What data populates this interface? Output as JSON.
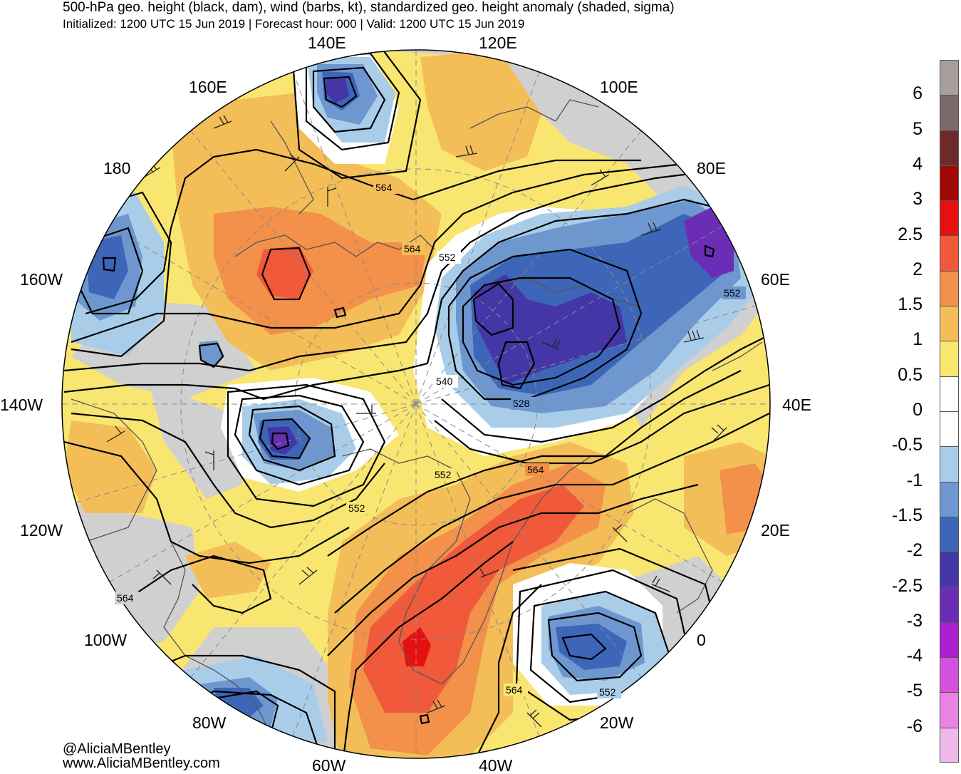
{
  "title": "500-hPa geo. height (black, dam), wind (barbs, kt), standardized geo. height anomaly (shaded, sigma)",
  "subtitle": "Initialized: 1200 UTC 15 Jun 2019 | Forecast hour: 000 | Valid: 1200 UTC 15 Jun 2019",
  "credits": [
    "@AliciaMBentley",
    "www.AliciaMBentley.com"
  ],
  "longitude_labels": [
    "140E",
    "120E",
    "160E",
    "100E",
    "180",
    "80E",
    "160W",
    "60E",
    "140W",
    "40E",
    "120W",
    "20E",
    "100W",
    "0",
    "80W",
    "20W",
    "60W",
    "40W"
  ],
  "contour_labels": [
    "564",
    "564",
    "552",
    "552",
    "540",
    "528",
    "564",
    "552",
    "552",
    "564",
    "564",
    "552"
  ],
  "colorbar": {
    "tick_labels": [
      "6",
      "5",
      "4",
      "3",
      "2.5",
      "2",
      "1.5",
      "1",
      "0.5",
      "0",
      "-0.5",
      "-1",
      "-1.5",
      "-2",
      "-2.5",
      "-3",
      "-4",
      "-5",
      "-6"
    ],
    "colors": [
      "#a89e9e",
      "#7a6a68",
      "#6e2a2a",
      "#a00808",
      "#e61010",
      "#f0593a",
      "#f3904a",
      "#f3be58",
      "#f9e671",
      "#ffffff",
      "#ffffff",
      "#a9cde8",
      "#6e97cf",
      "#3e66b8",
      "#4436a6",
      "#6c2db6",
      "#ab1fcc",
      "#d550dc",
      "#e883e4",
      "#eeb8ea"
    ]
  },
  "map_colors": {
    "warm1": "#f9e671",
    "warm2": "#f3be58",
    "warm3": "#f3904a",
    "warm4": "#f0593a",
    "warm5": "#e61010",
    "cool1": "#a9cde8",
    "cool2": "#6e97cf",
    "cool3": "#3e66b8",
    "cool4": "#4436a6",
    "cool5": "#6c2db6",
    "neutral": "#d0d0d0",
    "coast": "#555555",
    "contour": "#000000",
    "barb": "#222222"
  }
}
